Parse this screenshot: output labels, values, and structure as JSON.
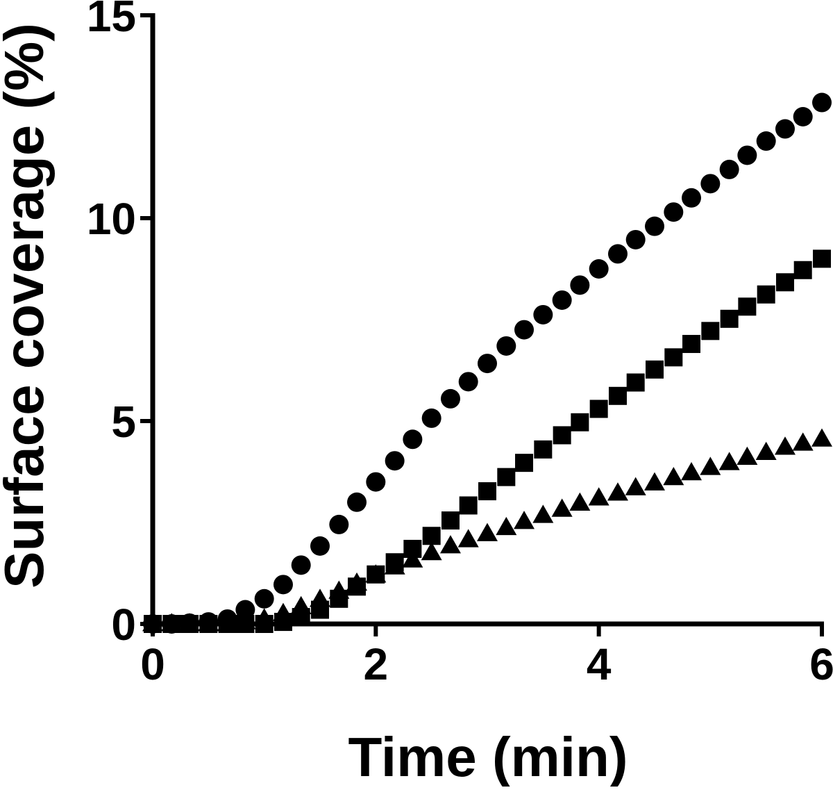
{
  "chart_data": {
    "type": "scatter",
    "title": "",
    "xlabel": "Time (min)",
    "ylabel": "Surface coverage (%)",
    "xlim": [
      0,
      6
    ],
    "ylim": [
      0,
      15
    ],
    "xticks": [
      0,
      2,
      4,
      6
    ],
    "yticks": [
      0,
      5,
      10,
      15
    ],
    "xtick_labels": [
      "0",
      "2",
      "4",
      "6"
    ],
    "ytick_labels": [
      "0",
      "5",
      "10",
      "15"
    ],
    "grid": false,
    "legend": null,
    "colors": {
      "marker": "#000000",
      "axis": "#000000"
    },
    "series": [
      {
        "name": "circles",
        "marker": "circle",
        "x": [
          0.0,
          0.17,
          0.33,
          0.5,
          0.67,
          0.83,
          1.0,
          1.17,
          1.33,
          1.5,
          1.67,
          1.83,
          2.0,
          2.17,
          2.33,
          2.5,
          2.67,
          2.83,
          3.0,
          3.17,
          3.33,
          3.5,
          3.67,
          3.83,
          4.0,
          4.17,
          4.33,
          4.5,
          4.67,
          4.83,
          5.0,
          5.17,
          5.33,
          5.5,
          5.67,
          5.83,
          6.0
        ],
        "y": [
          0.0,
          0.0,
          0.02,
          0.05,
          0.12,
          0.35,
          0.62,
          0.97,
          1.45,
          1.92,
          2.45,
          3.0,
          3.5,
          4.02,
          4.55,
          5.07,
          5.55,
          5.97,
          6.42,
          6.85,
          7.25,
          7.62,
          7.98,
          8.35,
          8.75,
          9.12,
          9.47,
          9.8,
          10.15,
          10.5,
          10.85,
          11.2,
          11.55,
          11.9,
          12.2,
          12.5,
          12.85
        ]
      },
      {
        "name": "squares",
        "marker": "square",
        "x": [
          0.0,
          0.17,
          0.33,
          0.5,
          0.67,
          0.83,
          1.0,
          1.17,
          1.33,
          1.5,
          1.67,
          1.83,
          2.0,
          2.17,
          2.33,
          2.5,
          2.67,
          2.83,
          3.0,
          3.17,
          3.33,
          3.5,
          3.67,
          3.83,
          4.0,
          4.17,
          4.33,
          4.5,
          4.67,
          4.83,
          5.0,
          5.17,
          5.33,
          5.5,
          5.67,
          5.83,
          6.0
        ],
        "y": [
          0.0,
          0.0,
          0.0,
          0.0,
          0.0,
          0.0,
          0.0,
          0.05,
          0.17,
          0.35,
          0.62,
          0.92,
          1.22,
          1.52,
          1.85,
          2.17,
          2.55,
          2.92,
          3.27,
          3.62,
          3.97,
          4.3,
          4.65,
          4.97,
          5.3,
          5.62,
          5.95,
          6.27,
          6.57,
          6.9,
          7.22,
          7.52,
          7.82,
          8.12,
          8.42,
          8.72,
          9.0
        ]
      },
      {
        "name": "triangles",
        "marker": "triangle",
        "x": [
          0.0,
          0.17,
          0.33,
          0.5,
          0.67,
          0.83,
          1.0,
          1.17,
          1.33,
          1.5,
          1.67,
          1.83,
          2.0,
          2.17,
          2.33,
          2.5,
          2.67,
          2.83,
          3.0,
          3.17,
          3.33,
          3.5,
          3.67,
          3.83,
          4.0,
          4.17,
          4.33,
          4.5,
          4.67,
          4.83,
          5.0,
          5.17,
          5.33,
          5.5,
          5.67,
          5.83,
          6.0
        ],
        "y": [
          0.0,
          0.0,
          0.0,
          0.0,
          0.0,
          0.05,
          0.12,
          0.25,
          0.42,
          0.6,
          0.8,
          1.0,
          1.2,
          1.4,
          1.57,
          1.75,
          1.92,
          2.07,
          2.22,
          2.37,
          2.52,
          2.67,
          2.82,
          2.97,
          3.1,
          3.22,
          3.35,
          3.47,
          3.6,
          3.72,
          3.85,
          3.97,
          4.1,
          4.22,
          4.35,
          4.45,
          4.55
        ]
      }
    ]
  }
}
